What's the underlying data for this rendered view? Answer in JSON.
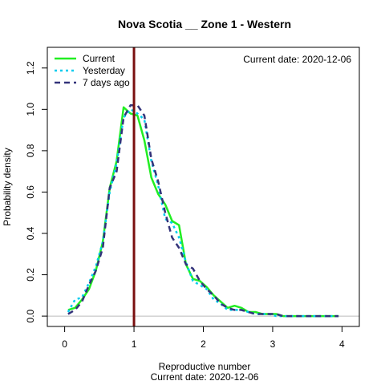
{
  "chart_data": {
    "type": "line",
    "title": "Nova Scotia __ Zone 1 - Western",
    "xlabel": "Reproductive number",
    "xlabel_sub": "Current date:  2020-12-06",
    "ylabel": "Probability density",
    "annotation": "Current date:  2020-12-06",
    "xlim": [
      -0.25,
      4.25
    ],
    "ylim": [
      -0.05,
      1.3
    ],
    "x_ticks": [
      0,
      1,
      2,
      3,
      4
    ],
    "y_ticks": [
      0.0,
      0.2,
      0.4,
      0.6,
      0.8,
      1.0,
      1.2
    ],
    "x_tick_labels": [
      "0",
      "1",
      "2",
      "3",
      "4"
    ],
    "y_tick_labels": [
      "0.0",
      "0.2",
      "0.4",
      "0.6",
      "0.8",
      "1.0",
      "1.2"
    ],
    "vline": {
      "x": 1.0,
      "color": "#7a1010"
    },
    "hline": {
      "y": 0.0,
      "color": "#bbbbbb"
    },
    "legend": {
      "position": "top-left"
    },
    "series": [
      {
        "name": "Current",
        "color": "#22ee22",
        "dash": "solid",
        "x": [
          0.05,
          0.15,
          0.25,
          0.35,
          0.45,
          0.55,
          0.65,
          0.75,
          0.85,
          0.95,
          1.05,
          1.15,
          1.25,
          1.35,
          1.45,
          1.55,
          1.65,
          1.75,
          1.85,
          1.95,
          2.05,
          2.15,
          2.25,
          2.35,
          2.45,
          2.55,
          2.65,
          2.75,
          2.85,
          2.95,
          3.05,
          3.15,
          3.25,
          3.35,
          3.45,
          3.55,
          3.65,
          3.75,
          3.85,
          3.95
        ],
        "y": [
          0.03,
          0.04,
          0.08,
          0.13,
          0.22,
          0.36,
          0.62,
          0.75,
          1.01,
          0.98,
          0.97,
          0.85,
          0.67,
          0.59,
          0.54,
          0.46,
          0.44,
          0.25,
          0.18,
          0.17,
          0.14,
          0.1,
          0.07,
          0.04,
          0.05,
          0.04,
          0.02,
          0.02,
          0.01,
          0.01,
          0.01,
          0.0,
          0.0,
          0.0,
          0.0,
          0.0,
          0.0,
          0.0,
          0.0,
          0.0
        ]
      },
      {
        "name": "Yesterday",
        "color": "#00ccee",
        "dash": "dotted",
        "x": [
          0.05,
          0.15,
          0.25,
          0.35,
          0.45,
          0.55,
          0.65,
          0.75,
          0.85,
          0.95,
          1.05,
          1.15,
          1.25,
          1.35,
          1.45,
          1.55,
          1.65,
          1.75,
          1.85,
          1.95,
          2.05,
          2.15,
          2.25,
          2.35,
          2.45,
          2.55,
          2.65,
          2.75,
          2.85,
          2.95,
          3.05,
          3.15,
          3.25,
          3.35,
          3.45,
          3.55,
          3.65,
          3.75,
          3.85,
          3.95
        ],
        "y": [
          0.02,
          0.08,
          0.09,
          0.16,
          0.24,
          0.36,
          0.6,
          0.74,
          0.96,
          1.0,
          0.98,
          0.95,
          0.75,
          0.63,
          0.47,
          0.45,
          0.38,
          0.26,
          0.17,
          0.15,
          0.13,
          0.08,
          0.06,
          0.03,
          0.03,
          0.03,
          0.02,
          0.01,
          0.01,
          0.01,
          0.0,
          0.0,
          0.0,
          0.0,
          0.0,
          0.0,
          0.0,
          0.0,
          0.0,
          0.0
        ]
      },
      {
        "name": "7 days ago",
        "color": "#33337a",
        "dash": "dashed",
        "x": [
          0.05,
          0.15,
          0.25,
          0.35,
          0.45,
          0.55,
          0.65,
          0.75,
          0.85,
          0.95,
          1.05,
          1.15,
          1.25,
          1.35,
          1.45,
          1.55,
          1.65,
          1.75,
          1.85,
          1.95,
          2.05,
          2.15,
          2.25,
          2.35,
          2.45,
          2.55,
          2.65,
          2.75,
          2.85,
          2.95,
          3.05,
          3.15,
          3.25,
          3.35,
          3.45,
          3.55,
          3.65,
          3.75,
          3.85,
          3.95
        ],
        "y": [
          0.01,
          0.03,
          0.07,
          0.15,
          0.22,
          0.33,
          0.62,
          0.7,
          0.96,
          1.02,
          1.02,
          0.97,
          0.76,
          0.65,
          0.5,
          0.38,
          0.33,
          0.25,
          0.23,
          0.17,
          0.13,
          0.1,
          0.06,
          0.04,
          0.03,
          0.03,
          0.02,
          0.01,
          0.01,
          0.01,
          0.01,
          0.0,
          0.0,
          0.0,
          0.0,
          0.0,
          0.0,
          0.0,
          0.0,
          0.0
        ]
      }
    ]
  }
}
